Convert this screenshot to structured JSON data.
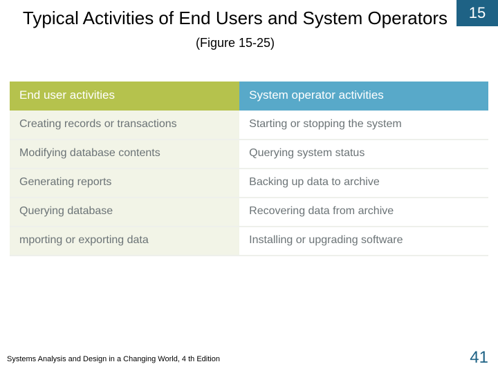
{
  "chapter_number": "15",
  "title_main": "Typical Activities of End Users and System Operators",
  "title_sub": "(Figure 15-25)",
  "table": {
    "headers": {
      "left": "End user activities",
      "right": "System operator activities"
    },
    "rows": [
      {
        "left": "Creating records or transactions",
        "right": "Starting or stopping the system"
      },
      {
        "left": "Modifying database contents",
        "right": "Querying system status"
      },
      {
        "left": "Generating reports",
        "right": "Backing up data to archive"
      },
      {
        "left": "Querying database",
        "right": "Recovering data from archive"
      },
      {
        "left": "mporting or exporting data",
        "right": "Installing or upgrading software"
      }
    ],
    "colors": {
      "header_left_bg": "#b5c24d",
      "header_right_bg": "#58a9c9",
      "cell_left_bg": "#f2f4e7",
      "cell_right_bg": "#ffffff",
      "row_border": "#eef0eb",
      "cell_text": "#6b7376",
      "header_text": "#ffffff"
    }
  },
  "footer_text": "Systems Analysis and Design in a Changing World, 4 th Edition",
  "page_number": "41",
  "accent_color": "#1e6285"
}
